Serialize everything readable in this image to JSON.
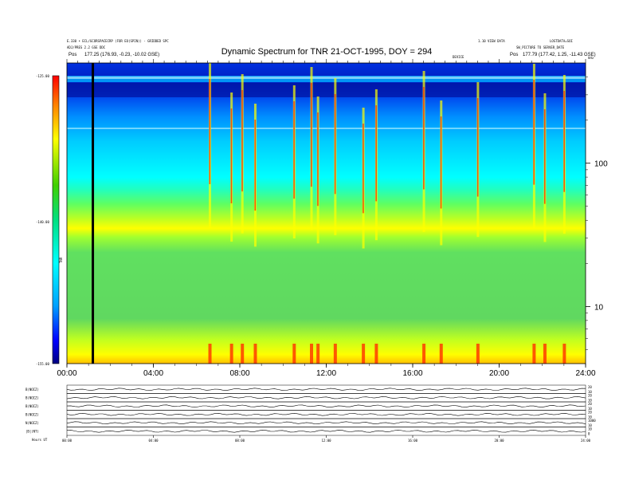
{
  "header": {
    "title": "Dynamic Spectrum for TNR 21-OCT-1995, DOY = 294",
    "left_line1": "E.330 • ECL/GCORSPACECRP (FOR EO(SPIN)) - GRIDDED SPC",
    "left_line2": "ADJ/PRES 2.2 GSE DDC",
    "left_pos_label": "Pos",
    "left_pos_value": "177.25 (176.93, -0.23, -10.02 GSE)",
    "center_small": "DEVICE",
    "right_line1": "1.10 VIEW DATA",
    "right_line2": "SW_PICTURE TO SERVER_DATE",
    "right_line3": "LOSTDATA=SOI",
    "right_pos_label": "Pos",
    "right_pos_value": "177.79 (177.42, 1.25, -11.43 GSE)",
    "right_unit": "kHz"
  },
  "colorbar": {
    "top_label": "-125.00",
    "mid_label": "-140.00",
    "bottom_label": "-155.00",
    "axis_label": "TNR",
    "colors": [
      "#000080",
      "#0000ff",
      "#00c8ff",
      "#00ffff",
      "#00ff80",
      "#00c800",
      "#80ff00",
      "#ffff00",
      "#ffa500",
      "#ff0000",
      "#c80000"
    ]
  },
  "chart_data": [
    {
      "type": "heatmap",
      "title": "Dynamic Spectrum for TNR 21-OCT-1995, DOY = 294",
      "x_ticks": [
        "00:00",
        "04:00",
        "08:00",
        "12:00",
        "16:00",
        "20:00",
        "24:00"
      ],
      "x_range_hours": [
        0,
        24
      ],
      "y_scale": "log",
      "y_unit": "kHz",
      "y_ticks": [
        "100",
        "10"
      ],
      "y_tick_values": [
        100,
        10
      ],
      "y_range_khz": [
        4,
        500
      ],
      "colorbar_range": [
        -155.0,
        -125.0
      ],
      "colorbar_ticks": [
        "-125.00",
        "-140.00",
        "-155.00"
      ],
      "data_gap_at_hour": 1.2,
      "bursts_hours": [
        6.6,
        7.6,
        8.1,
        8.7,
        10.5,
        11.3,
        11.6,
        12.4,
        13.7,
        14.3,
        16.5,
        17.3,
        19.0,
        21.6,
        22.1,
        23.0
      ]
    },
    {
      "type": "line",
      "panels": [
        {
          "label": "B(NOIZ)",
          "right_ticks": [
            "20",
            "10"
          ]
        },
        {
          "label": "B(NOIZ)",
          "right_ticks": [
            "20",
            "10"
          ]
        },
        {
          "label": "B(NOIZ)",
          "right_ticks": [
            "20",
            "10"
          ]
        },
        {
          "label": "B(NOIZ)",
          "right_ticks": [
            "20",
            "10"
          ]
        },
        {
          "label": "N(NOIZ)",
          "right_ticks": [
            "1000",
            "10"
          ]
        },
        {
          "label": "|B|(NT)",
          "right_ticks": [
            "10",
            "0"
          ]
        }
      ],
      "x_ticks": [
        "00:00",
        "04:00",
        "08:00",
        "12:00",
        "16:00",
        "20:00",
        "24:00"
      ],
      "footer_label": "Hours UT"
    }
  ]
}
